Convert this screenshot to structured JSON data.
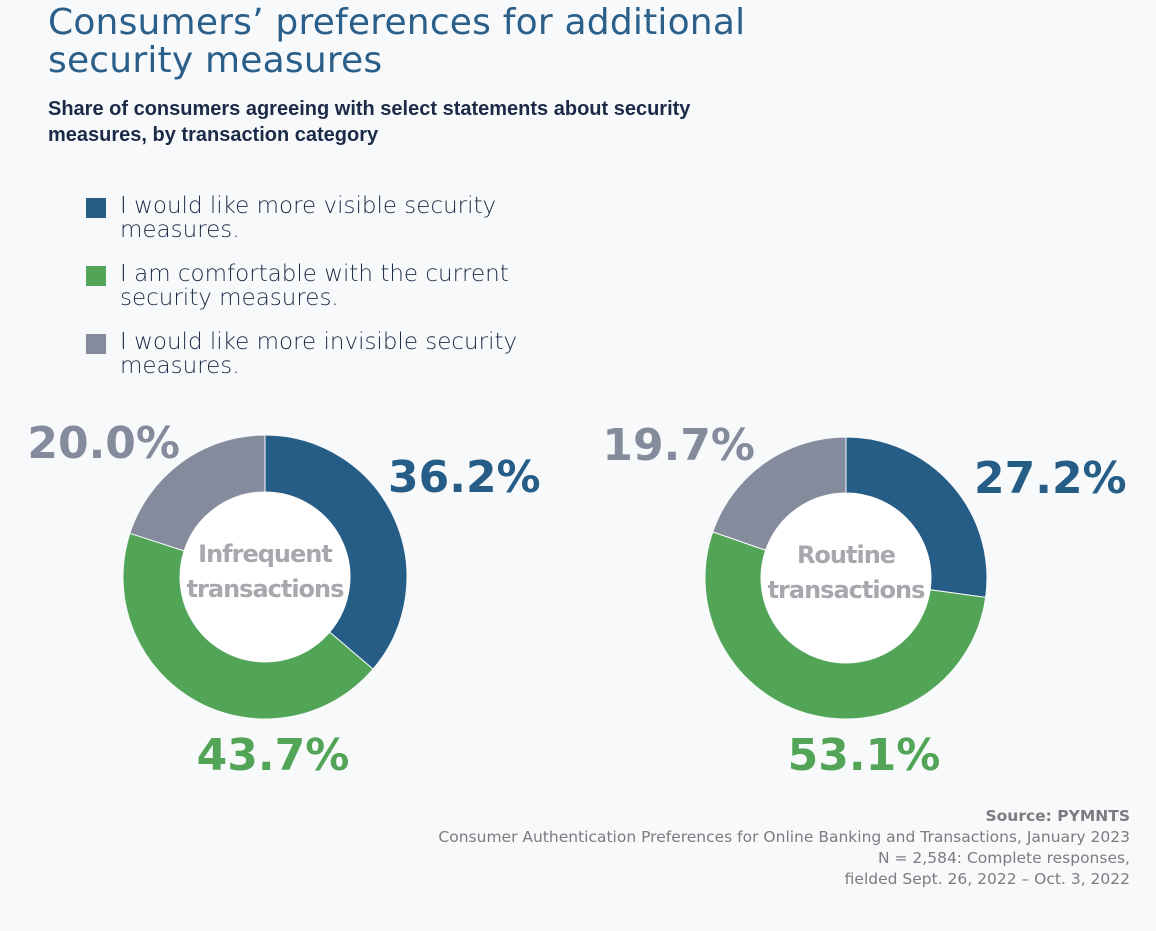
{
  "title": "Consumers’ preferences for additional security measures",
  "subtitle": "Share of consumers agreeing with select statements about security measures, by transaction category",
  "legend": [
    {
      "label": "I would like more visible security measures.",
      "color": "#265d87"
    },
    {
      "label": "I am comfortable with the current security measures.",
      "color": "#52a457"
    },
    {
      "label": "I would like more invisible security measures.",
      "color": "#848b9c"
    }
  ],
  "chart_data": [
    {
      "type": "pie",
      "donut": true,
      "center_label": [
        "Infrequent",
        "transactions"
      ],
      "categories": [
        "I would like more visible security measures.",
        "I am comfortable with the current security measures.",
        "I would like more invisible security measures."
      ],
      "values": [
        36.2,
        43.7,
        20.0
      ],
      "labels": [
        "36.2%",
        "43.7%",
        "20.0%"
      ],
      "colors": [
        "#265d87",
        "#52a457",
        "#848b9c"
      ]
    },
    {
      "type": "pie",
      "donut": true,
      "center_label": [
        "Routine",
        "transactions"
      ],
      "categories": [
        "I would like more visible security measures.",
        "I am comfortable with the current security measures.",
        "I would like more invisible security measures."
      ],
      "values": [
        27.2,
        53.1,
        19.7
      ],
      "labels": [
        "27.2%",
        "53.1%",
        "19.7%"
      ],
      "colors": [
        "#265d87",
        "#52a457",
        "#848b9c"
      ]
    }
  ],
  "footer": {
    "source": "Source: PYMNTS",
    "lines": [
      "Consumer Authentication Preferences for Online Banking and Transactions, January 2023",
      "N = 2,584: Complete responses,",
      "fielded Sept. 26, 2022 – Oct. 3, 2022"
    ]
  }
}
